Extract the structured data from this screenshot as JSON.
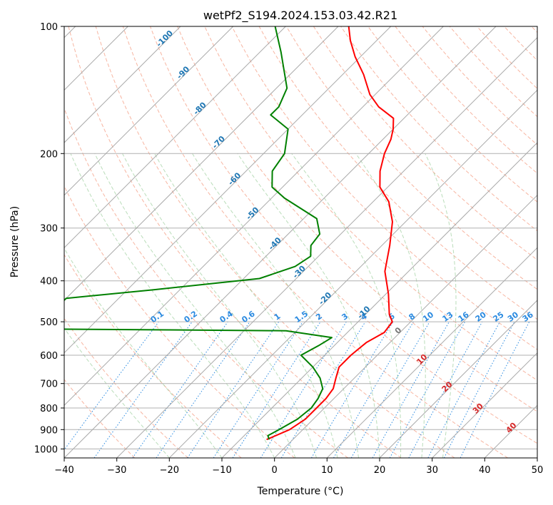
{
  "chart_data": {
    "type": "line",
    "title": "wetPf2_S194.2024.153.03.42.R21",
    "xlabel": "Temperature (°C)",
    "ylabel": "Pressure (hPa)",
    "xlim": [
      -40,
      50
    ],
    "ylim": [
      1050,
      100
    ],
    "y_scale": "log",
    "x_ticks": [
      "-40",
      "-30",
      "-20",
      "-10",
      "0",
      "10",
      "20",
      "30",
      "40",
      "50"
    ],
    "y_ticks": [
      "100",
      "200",
      "300",
      "400",
      "500",
      "600",
      "700",
      "800",
      "900",
      "1000"
    ],
    "grid": true,
    "background_lines": {
      "isotherms_skewed": true,
      "dry_adiabats_color": "#f5a38a",
      "moist_adiabats_color": "#9ccf9c",
      "mixing_ratio_color": "#2a8ae0",
      "isotherm_color": "#777777"
    },
    "adiabat_labels_blue": [
      "-100",
      "-90",
      "-80",
      "-70",
      "-60",
      "-50",
      "-40",
      "-30",
      "-20",
      "-10"
    ],
    "adiabat_labels_red": [
      "10",
      "20",
      "30",
      "40"
    ],
    "zero_label": "0",
    "mixing_ratio_labels": [
      "0.1",
      "0.2",
      "0.4",
      "0.6",
      "1",
      "1.5",
      "2",
      "3",
      "4",
      "6",
      "8",
      "10",
      "13",
      "16",
      "20",
      "25",
      "30",
      "36"
    ],
    "series": [
      {
        "color": "#ff0000",
        "points": [
          [
            -5.0,
            950
          ],
          [
            -4.5,
            940
          ],
          [
            -2.5,
            900
          ],
          [
            -1.5,
            850
          ],
          [
            -1.5,
            800
          ],
          [
            -1.5,
            760
          ],
          [
            -2.0,
            720
          ],
          [
            -3.5,
            680
          ],
          [
            -5.0,
            640
          ],
          [
            -5.0,
            600
          ],
          [
            -4.5,
            560
          ],
          [
            -3.0,
            530
          ],
          [
            -3.5,
            500
          ],
          [
            -5.5,
            480
          ],
          [
            -9.5,
            430
          ],
          [
            -14.5,
            380
          ],
          [
            -18.5,
            330
          ],
          [
            -22.5,
            290
          ],
          [
            -27.0,
            260
          ],
          [
            -31.5,
            240
          ],
          [
            -34.5,
            220
          ],
          [
            -37.0,
            200
          ],
          [
            -38.5,
            185
          ],
          [
            -40.0,
            175
          ],
          [
            -42.0,
            165
          ],
          [
            -47.0,
            155
          ],
          [
            -51.0,
            145
          ],
          [
            -56.0,
            130
          ],
          [
            -61.0,
            118
          ],
          [
            -65.0,
            108
          ],
          [
            -68.0,
            100
          ]
        ]
      },
      {
        "color": "#008000",
        "points": [
          [
            -4.5,
            950
          ],
          [
            -5.5,
            930
          ],
          [
            -4.5,
            900
          ],
          [
            -3.0,
            850
          ],
          [
            -2.5,
            800
          ],
          [
            -3.0,
            760
          ],
          [
            -4.0,
            720
          ],
          [
            -6.5,
            680
          ],
          [
            -10.0,
            640
          ],
          [
            -14.5,
            600
          ],
          [
            -13.0,
            570
          ],
          [
            -12.0,
            545
          ],
          [
            -22.0,
            525
          ],
          [
            -70.0,
            520
          ],
          [
            -70.0,
            440
          ],
          [
            -55.0,
            420
          ],
          [
            -37.0,
            395
          ],
          [
            -32.5,
            370
          ],
          [
            -31.5,
            350
          ],
          [
            -33.5,
            330
          ],
          [
            -34.0,
            310
          ],
          [
            -37.5,
            285
          ],
          [
            -47.5,
            255
          ],
          [
            -52.0,
            240
          ],
          [
            -55.0,
            220
          ],
          [
            -56.0,
            200
          ],
          [
            -60.0,
            175
          ],
          [
            -66.0,
            162
          ],
          [
            -66.0,
            155
          ],
          [
            -68.0,
            140
          ],
          [
            -76.0,
            115
          ],
          [
            -82.0,
            100
          ]
        ]
      }
    ]
  }
}
